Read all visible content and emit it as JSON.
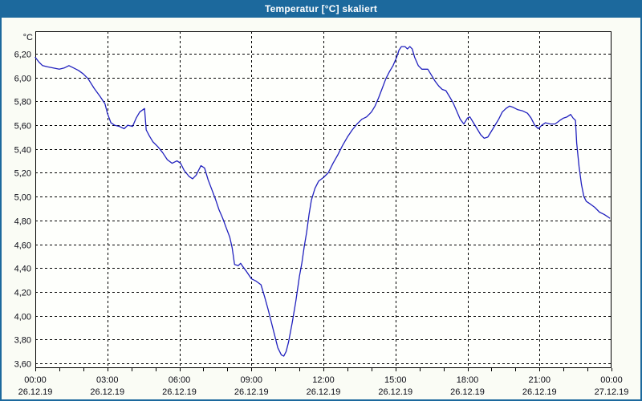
{
  "window": {
    "title": "Temperatur [°C] skaliert"
  },
  "colors": {
    "titlebar": "#1C699D",
    "frame": "#1C699D",
    "client_background": "#FAFCF5",
    "plot_background": "#FEFFFC",
    "grid": "#000000",
    "text": "#0A0A14",
    "line": "#2121BE"
  },
  "chart_data": {
    "type": "line",
    "title": "Temperatur [°C] skaliert",
    "grid": "dashed, horizontal every 0.20 °C, vertical every 3 h, minor x-ticks every 1 h",
    "legend_position": "none",
    "y_axis": {
      "unit": "°C",
      "min": 3.6,
      "max": 6.2,
      "step": 0.2,
      "plot_value_range": [
        3.56,
        6.39
      ],
      "ticks": [
        {
          "v": 6.2,
          "label": "6,20"
        },
        {
          "v": 6.0,
          "label": "6,00"
        },
        {
          "v": 5.8,
          "label": "5,80"
        },
        {
          "v": 5.6,
          "label": "5,60"
        },
        {
          "v": 5.4,
          "label": "5,40"
        },
        {
          "v": 5.2,
          "label": "5,20"
        },
        {
          "v": 5.0,
          "label": "5,00"
        },
        {
          "v": 4.8,
          "label": "4,80"
        },
        {
          "v": 4.6,
          "label": "4,60"
        },
        {
          "v": 4.4,
          "label": "4,40"
        },
        {
          "v": 4.2,
          "label": "4,20"
        },
        {
          "v": 4.0,
          "label": "4,00"
        },
        {
          "v": 3.8,
          "label": "3,80"
        },
        {
          "v": 3.6,
          "label": "3,60"
        }
      ]
    },
    "x_axis": {
      "total_hours": 24,
      "major_tick_hours": 3,
      "minor_tick_hours": 1,
      "labels": [
        {
          "t": 0,
          "time": "00:00",
          "date": "26.12.19"
        },
        {
          "t": 3,
          "time": "03:00",
          "date": "26.12.19"
        },
        {
          "t": 6,
          "time": "06:00",
          "date": "26.12.19"
        },
        {
          "t": 9,
          "time": "09:00",
          "date": "26.12.19"
        },
        {
          "t": 12,
          "time": "12:00",
          "date": "26.12.19"
        },
        {
          "t": 15,
          "time": "15:00",
          "date": "26.12.19"
        },
        {
          "t": 18,
          "time": "18:00",
          "date": "26.12.19"
        },
        {
          "t": 21,
          "time": "21:00",
          "date": "26.12.19"
        },
        {
          "t": 24,
          "time": "00:00",
          "date": "27.12.19"
        }
      ]
    },
    "series": [
      {
        "name": "Temperatur [°C]",
        "color": "#2121BE",
        "observed_min": 3.66,
        "observed_max": 6.26,
        "points": [
          [
            0.0,
            6.17
          ],
          [
            0.15,
            6.13
          ],
          [
            0.3,
            6.1
          ],
          [
            0.5,
            6.09
          ],
          [
            0.75,
            6.08
          ],
          [
            1.0,
            6.07
          ],
          [
            1.2,
            6.08
          ],
          [
            1.4,
            6.1
          ],
          [
            1.6,
            6.08
          ],
          [
            1.8,
            6.06
          ],
          [
            2.0,
            6.03
          ],
          [
            2.2,
            5.99
          ],
          [
            2.45,
            5.91
          ],
          [
            2.7,
            5.84
          ],
          [
            2.9,
            5.78
          ],
          [
            3.0,
            5.7
          ],
          [
            3.15,
            5.62
          ],
          [
            3.3,
            5.6
          ],
          [
            3.5,
            5.59
          ],
          [
            3.7,
            5.57
          ],
          [
            3.85,
            5.6
          ],
          [
            4.05,
            5.59
          ],
          [
            4.2,
            5.66
          ],
          [
            4.35,
            5.71
          ],
          [
            4.55,
            5.74
          ],
          [
            4.62,
            5.56
          ],
          [
            4.75,
            5.51
          ],
          [
            4.9,
            5.46
          ],
          [
            5.1,
            5.42
          ],
          [
            5.3,
            5.37
          ],
          [
            5.5,
            5.31
          ],
          [
            5.7,
            5.28
          ],
          [
            5.9,
            5.3
          ],
          [
            6.05,
            5.28
          ],
          [
            6.2,
            5.22
          ],
          [
            6.4,
            5.17
          ],
          [
            6.55,
            5.15
          ],
          [
            6.7,
            5.18
          ],
          [
            6.9,
            5.26
          ],
          [
            7.05,
            5.24
          ],
          [
            7.2,
            5.14
          ],
          [
            7.35,
            5.06
          ],
          [
            7.5,
            4.98
          ],
          [
            7.65,
            4.89
          ],
          [
            7.8,
            4.82
          ],
          [
            7.95,
            4.74
          ],
          [
            8.1,
            4.66
          ],
          [
            8.2,
            4.57
          ],
          [
            8.3,
            4.43
          ],
          [
            8.45,
            4.42
          ],
          [
            8.55,
            4.44
          ],
          [
            8.65,
            4.41
          ],
          [
            8.8,
            4.37
          ],
          [
            9.0,
            4.31
          ],
          [
            9.2,
            4.29
          ],
          [
            9.4,
            4.26
          ],
          [
            9.55,
            4.16
          ],
          [
            9.7,
            4.05
          ],
          [
            9.85,
            3.93
          ],
          [
            10.0,
            3.81
          ],
          [
            10.1,
            3.73
          ],
          [
            10.25,
            3.67
          ],
          [
            10.35,
            3.66
          ],
          [
            10.45,
            3.7
          ],
          [
            10.55,
            3.78
          ],
          [
            10.7,
            3.94
          ],
          [
            10.85,
            4.12
          ],
          [
            11.0,
            4.33
          ],
          [
            11.1,
            4.44
          ],
          [
            11.2,
            4.58
          ],
          [
            11.3,
            4.7
          ],
          [
            11.4,
            4.85
          ],
          [
            11.5,
            4.97
          ],
          [
            11.65,
            5.07
          ],
          [
            11.8,
            5.13
          ],
          [
            12.0,
            5.16
          ],
          [
            12.2,
            5.2
          ],
          [
            12.4,
            5.28
          ],
          [
            12.6,
            5.35
          ],
          [
            12.8,
            5.43
          ],
          [
            13.0,
            5.5
          ],
          [
            13.2,
            5.56
          ],
          [
            13.4,
            5.61
          ],
          [
            13.6,
            5.65
          ],
          [
            13.8,
            5.67
          ],
          [
            14.0,
            5.71
          ],
          [
            14.15,
            5.76
          ],
          [
            14.3,
            5.83
          ],
          [
            14.45,
            5.91
          ],
          [
            14.6,
            5.99
          ],
          [
            14.75,
            6.05
          ],
          [
            14.9,
            6.1
          ],
          [
            15.05,
            6.17
          ],
          [
            15.15,
            6.23
          ],
          [
            15.25,
            6.26
          ],
          [
            15.4,
            6.26
          ],
          [
            15.5,
            6.24
          ],
          [
            15.6,
            6.26
          ],
          [
            15.7,
            6.24
          ],
          [
            15.8,
            6.17
          ],
          [
            15.95,
            6.1
          ],
          [
            16.1,
            6.07
          ],
          [
            16.35,
            6.07
          ],
          [
            16.5,
            6.02
          ],
          [
            16.65,
            5.97
          ],
          [
            16.8,
            5.93
          ],
          [
            16.95,
            5.9
          ],
          [
            17.1,
            5.89
          ],
          [
            17.25,
            5.84
          ],
          [
            17.4,
            5.79
          ],
          [
            17.55,
            5.72
          ],
          [
            17.7,
            5.65
          ],
          [
            17.85,
            5.61
          ],
          [
            18.0,
            5.66
          ],
          [
            18.1,
            5.67
          ],
          [
            18.25,
            5.62
          ],
          [
            18.4,
            5.57
          ],
          [
            18.55,
            5.52
          ],
          [
            18.7,
            5.49
          ],
          [
            18.85,
            5.5
          ],
          [
            19.0,
            5.55
          ],
          [
            19.15,
            5.6
          ],
          [
            19.3,
            5.65
          ],
          [
            19.45,
            5.71
          ],
          [
            19.6,
            5.74
          ],
          [
            19.75,
            5.76
          ],
          [
            19.9,
            5.75
          ],
          [
            20.1,
            5.73
          ],
          [
            20.3,
            5.72
          ],
          [
            20.5,
            5.7
          ],
          [
            20.65,
            5.66
          ],
          [
            20.8,
            5.6
          ],
          [
            20.95,
            5.57
          ],
          [
            21.1,
            5.6
          ],
          [
            21.25,
            5.62
          ],
          [
            21.45,
            5.61
          ],
          [
            21.65,
            5.61
          ],
          [
            21.85,
            5.64
          ],
          [
            22.0,
            5.66
          ],
          [
            22.15,
            5.67
          ],
          [
            22.3,
            5.69
          ],
          [
            22.4,
            5.66
          ],
          [
            22.5,
            5.64
          ],
          [
            22.55,
            5.45
          ],
          [
            22.65,
            5.25
          ],
          [
            22.75,
            5.1
          ],
          [
            22.85,
            5.0
          ],
          [
            22.95,
            4.96
          ],
          [
            23.1,
            4.94
          ],
          [
            23.3,
            4.91
          ],
          [
            23.5,
            4.87
          ],
          [
            23.7,
            4.85
          ],
          [
            23.85,
            4.83
          ],
          [
            23.92,
            4.82
          ]
        ]
      }
    ]
  }
}
